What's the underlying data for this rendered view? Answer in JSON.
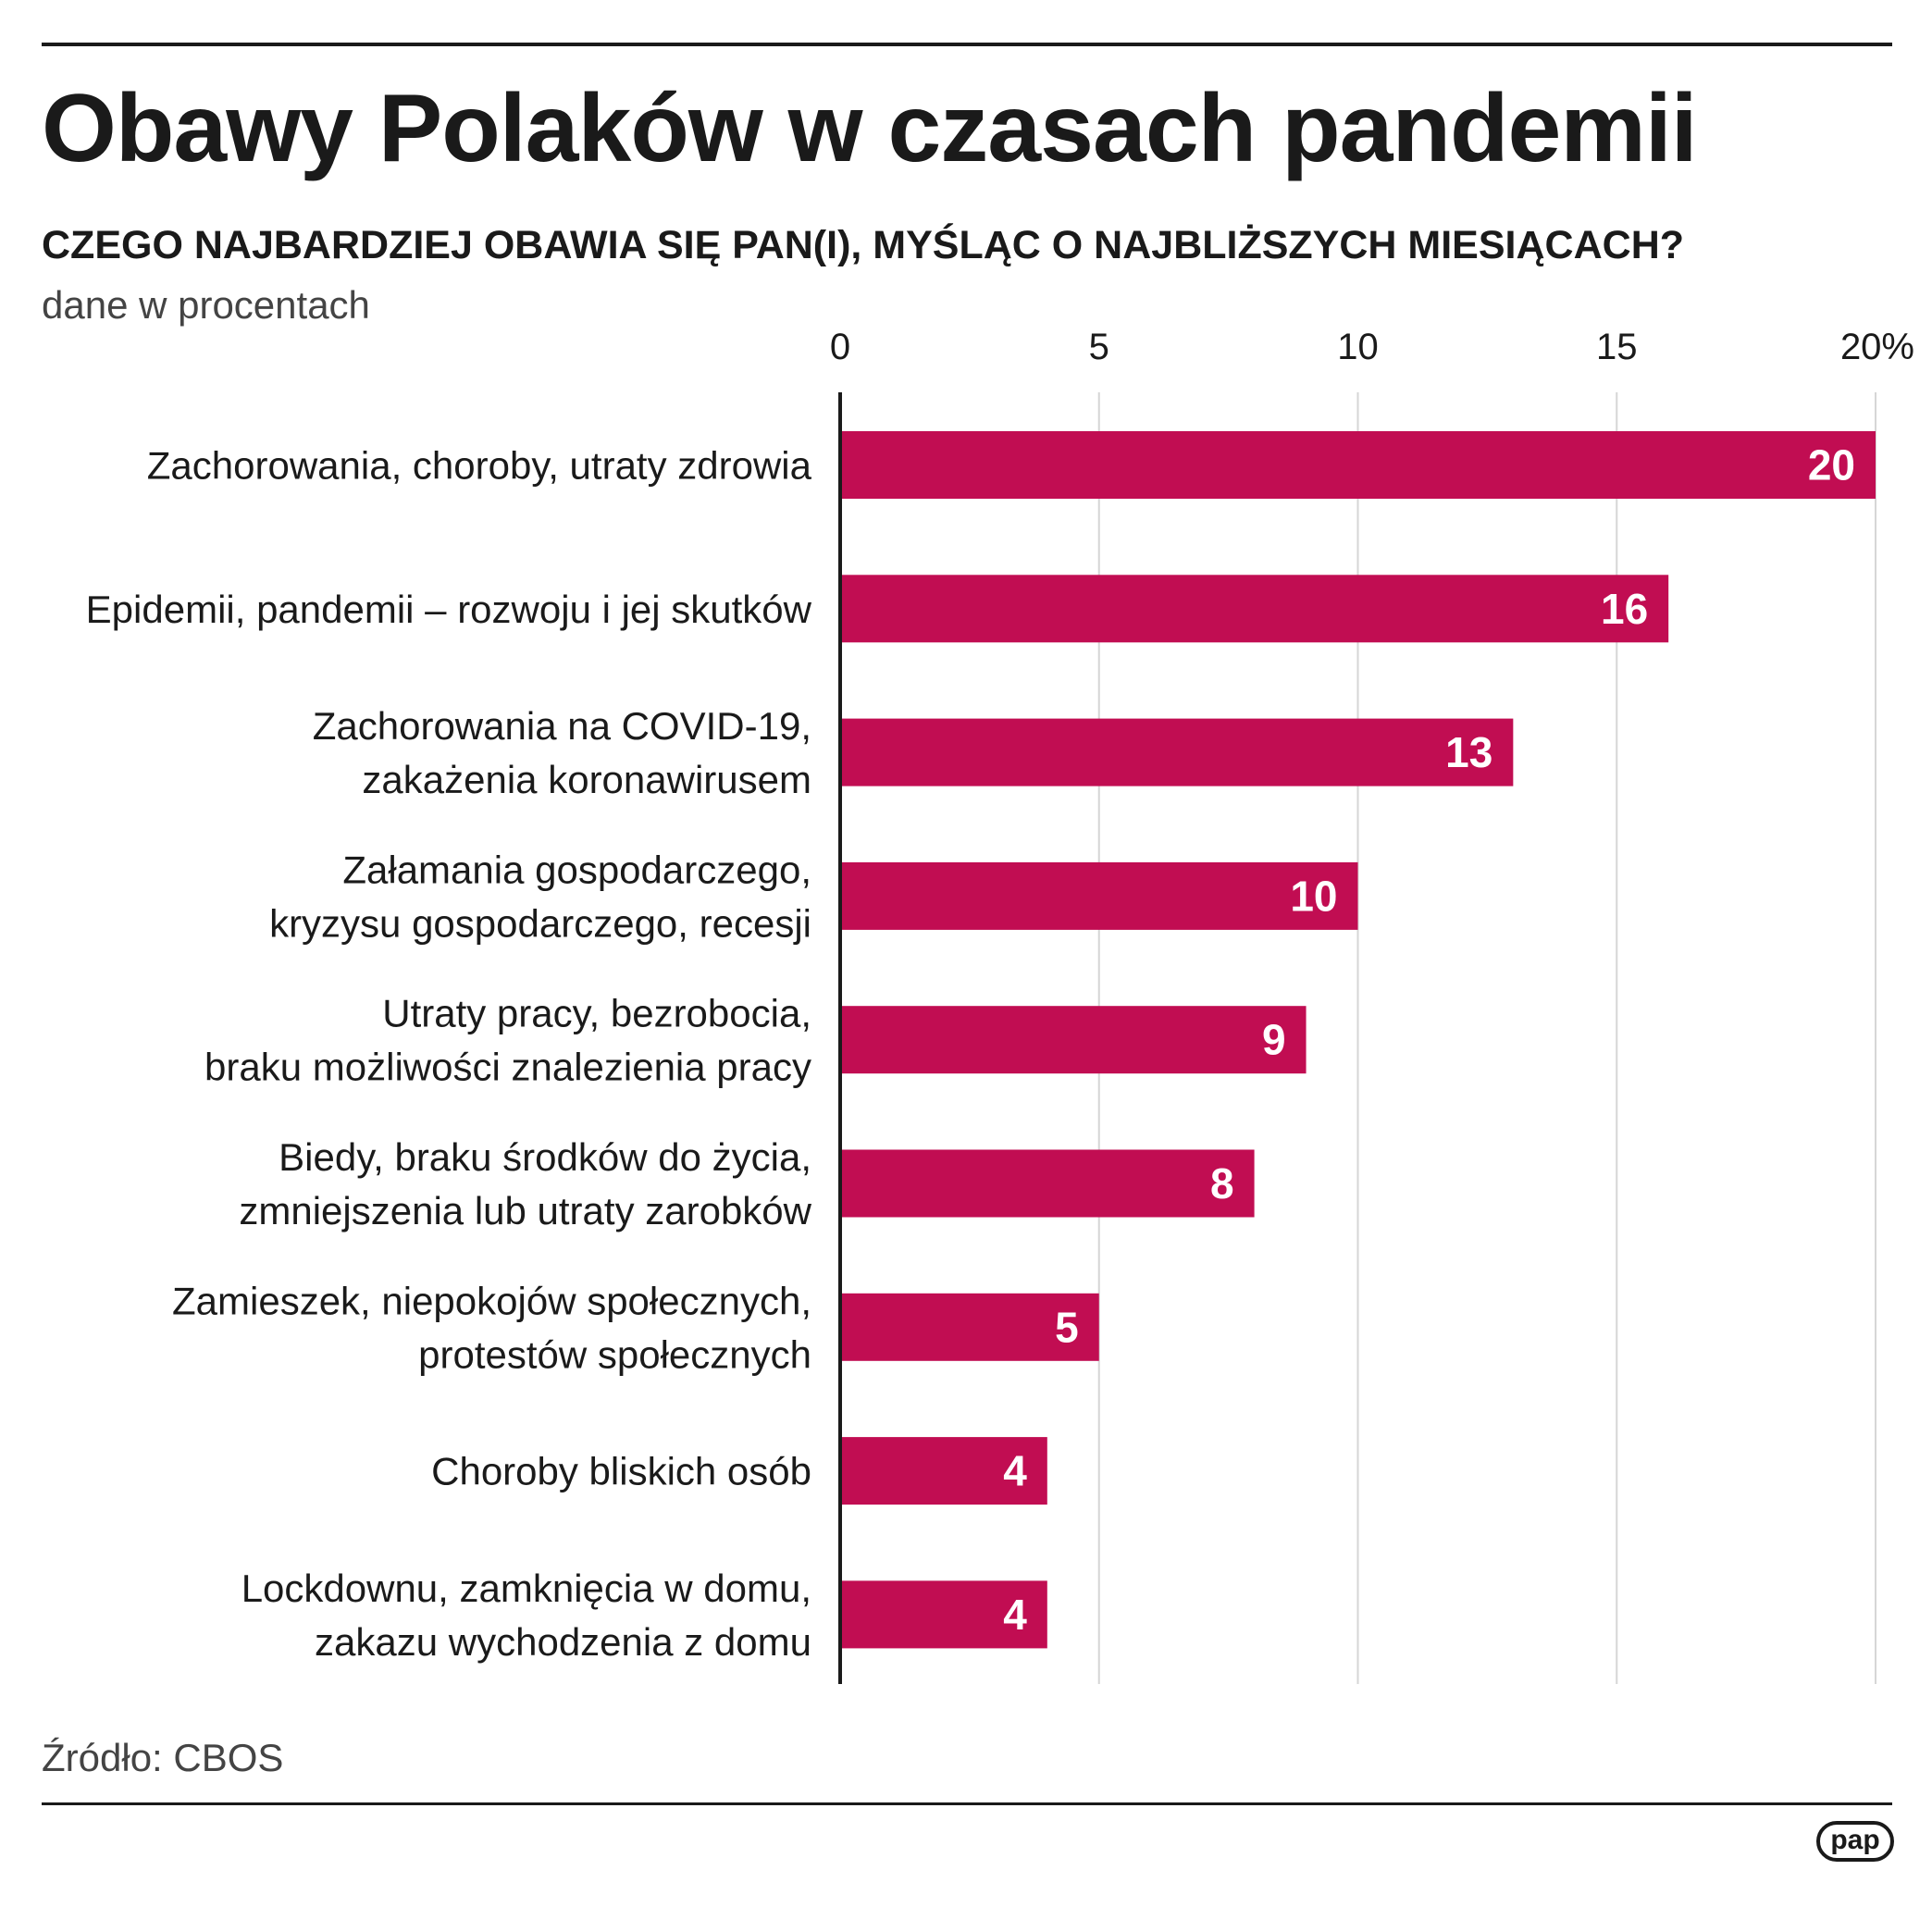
{
  "title": "Obawy Polaków w czasach pandemii",
  "subtitle": "CZEGO NAJBARDZIEJ OBAWIA SIĘ PAN(I), MYŚLĄC O NAJBLIŻSZYCH MIESIĄCACH?",
  "unit_note": "dane w procentach",
  "source": "Źródło: CBOS",
  "logo_text": "pap",
  "colors": {
    "bar": "#c10d52",
    "bar_label": "#ffffff",
    "grid": "#d6d6d6",
    "axis": "#1a1a1a",
    "text": "#1a1a1a",
    "muted": "#444444"
  },
  "chart_data": {
    "type": "bar",
    "orientation": "horizontal",
    "title": "Obawy Polaków w czasach pandemii",
    "xlabel": "",
    "ylabel": "",
    "xlim": [
      0,
      20
    ],
    "ticks": [
      0,
      5,
      10,
      15,
      20
    ],
    "tick_labels": [
      "0",
      "5",
      "10",
      "15",
      "20%"
    ],
    "grid": true,
    "categories": [
      [
        "Zachorowania, choroby, utraty zdrowia"
      ],
      [
        "Epidemii, pandemii – rozwoju i jej skutków"
      ],
      [
        "Zachorowania na COVID-19,",
        "zakażenia koronawirusem"
      ],
      [
        "Załamania gospodarczego,",
        "kryzysu gospodarczego, recesji"
      ],
      [
        "Utraty pracy, bezrobocia,",
        "braku możliwości znalezienia pracy"
      ],
      [
        "Biedy, braku środków do życia,",
        "zmniejszenia lub utraty zarobków"
      ],
      [
        "Zamieszek, niepokojów społecznych,",
        "protestów społecznych"
      ],
      [
        "Choroby bliskich osób"
      ],
      [
        "Lockdownu, zamknięcia w domu,",
        "zakazu wychodzenia z domu"
      ]
    ],
    "values": [
      20,
      16,
      13,
      10,
      9,
      8,
      5,
      4,
      4
    ],
    "value_labels": [
      "20",
      "16",
      "13",
      "10",
      "9",
      "8",
      "5",
      "4",
      "4"
    ]
  }
}
